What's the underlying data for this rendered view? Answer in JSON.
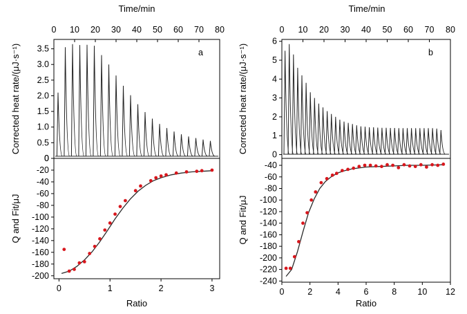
{
  "chart_data": [
    {
      "panel_label": "a",
      "type": "line",
      "time_axis_label": "Time/min",
      "time_ticks": [
        "0",
        "10",
        "20",
        "30",
        "40",
        "50",
        "60",
        "70",
        "80"
      ],
      "time_range": [
        0,
        80
      ],
      "thermogram": {
        "ylabel": "Corrected heat rate/(μJ·s⁻¹)",
        "ylim": [
          0,
          3.8
        ],
        "yticks": [
          "0",
          "0.5",
          "1.0",
          "1.5",
          "2.0",
          "2.5",
          "3.0",
          "3.5"
        ],
        "peak_times": [
          2,
          5.5,
          9,
          12.5,
          16,
          19.5,
          23,
          26.5,
          30,
          33.5,
          37,
          40.5,
          44,
          47.5,
          51,
          54.5,
          58,
          61.5,
          65,
          68.5,
          72,
          75.5
        ],
        "peak_heights": [
          2.1,
          3.55,
          3.65,
          3.62,
          3.63,
          3.6,
          3.3,
          3.0,
          2.65,
          2.32,
          2.02,
          1.73,
          1.48,
          1.27,
          1.1,
          0.97,
          0.86,
          0.77,
          0.7,
          0.65,
          0.6,
          0.56
        ],
        "baseline": 0.07
      },
      "binding": {
        "type": "scatter",
        "xlabel": "Ratio",
        "ylabel": "Q and Fit/μJ",
        "xlim": [
          -0.1,
          3.15
        ],
        "ylim": [
          -205,
          0
        ],
        "xticks": [
          "0",
          "1",
          "2",
          "3"
        ],
        "yticks": [
          "0",
          "-20",
          "-40",
          "-60",
          "-80",
          "-100",
          "-120",
          "-140",
          "-160",
          "-180",
          "-200"
        ],
        "points": [
          [
            0.1,
            -155
          ],
          [
            0.2,
            -192
          ],
          [
            0.3,
            -189
          ],
          [
            0.4,
            -178
          ],
          [
            0.5,
            -176
          ],
          [
            0.6,
            -162
          ],
          [
            0.7,
            -150
          ],
          [
            0.8,
            -137
          ],
          [
            0.9,
            -122
          ],
          [
            1.0,
            -110
          ],
          [
            1.1,
            -95
          ],
          [
            1.2,
            -82
          ],
          [
            1.3,
            -72
          ],
          [
            1.5,
            -55
          ],
          [
            1.6,
            -47
          ],
          [
            1.8,
            -38
          ],
          [
            1.9,
            -33
          ],
          [
            2.0,
            -30
          ],
          [
            2.1,
            -28
          ],
          [
            2.3,
            -25
          ],
          [
            2.5,
            -23
          ],
          [
            2.7,
            -22
          ],
          [
            2.8,
            -21
          ],
          [
            3.0,
            -20
          ]
        ],
        "fit": [
          [
            0.05,
            -196
          ],
          [
            0.2,
            -192
          ],
          [
            0.35,
            -184
          ],
          [
            0.5,
            -173
          ],
          [
            0.65,
            -159
          ],
          [
            0.8,
            -142
          ],
          [
            0.95,
            -123
          ],
          [
            1.1,
            -103
          ],
          [
            1.25,
            -85
          ],
          [
            1.4,
            -69
          ],
          [
            1.55,
            -56
          ],
          [
            1.7,
            -46
          ],
          [
            1.85,
            -38
          ],
          [
            2.0,
            -33
          ],
          [
            2.2,
            -28
          ],
          [
            2.4,
            -25
          ],
          [
            2.6,
            -23
          ],
          [
            2.8,
            -22
          ],
          [
            3.0,
            -21
          ]
        ]
      }
    },
    {
      "panel_label": "b",
      "type": "line",
      "time_axis_label": "Time/min",
      "time_ticks": [
        "0",
        "10",
        "20",
        "30",
        "40",
        "50",
        "60",
        "70",
        "80"
      ],
      "time_range": [
        0,
        80
      ],
      "thermogram": {
        "ylabel": "Corrected heat rate/(μJ·s⁻¹)",
        "ylim": [
          -0.2,
          6.1
        ],
        "yticks": [
          "0",
          "1",
          "2",
          "3",
          "4",
          "5",
          "6"
        ],
        "peak_times": [
          1.5,
          3.5,
          5.5,
          7.5,
          9.5,
          11.5,
          13.5,
          15.5,
          17.5,
          19.5,
          21.5,
          23.5,
          25.5,
          27.5,
          29.5,
          31.5,
          33.5,
          35.5,
          37.5,
          39.5,
          41.5,
          43.5,
          45.5,
          47.5,
          49.5,
          51.5,
          53.5,
          55.5,
          57.5,
          59.5,
          61.5,
          63.5,
          65.5,
          67.5,
          69.5,
          71.5,
          73.5,
          75.5
        ],
        "peak_heights": [
          5.5,
          5.85,
          5.3,
          4.6,
          4.2,
          3.8,
          3.3,
          3.0,
          2.7,
          2.5,
          2.3,
          2.15,
          2.0,
          1.85,
          1.75,
          1.68,
          1.62,
          1.55,
          1.5,
          1.48,
          1.45,
          1.45,
          1.43,
          1.42,
          1.42,
          1.41,
          1.41,
          1.4,
          1.4,
          1.4,
          1.4,
          1.4,
          1.4,
          1.4,
          1.4,
          1.4,
          1.38,
          1.3
        ],
        "baseline": 0.02
      },
      "binding": {
        "type": "scatter",
        "xlabel": "Ratio",
        "ylabel": "Q and Fit/μJ",
        "xlim": [
          0,
          12
        ],
        "ylim": [
          -242,
          -28
        ],
        "xticks": [
          "0",
          "2",
          "4",
          "6",
          "8",
          "10",
          "12"
        ],
        "yticks": [
          "-40",
          "-60",
          "-80",
          "-100",
          "-120",
          "-140",
          "-160",
          "-180",
          "-200",
          "-220",
          "-240"
        ],
        "points": [
          [
            0.3,
            -218
          ],
          [
            0.6,
            -218
          ],
          [
            0.9,
            -198
          ],
          [
            1.2,
            -172
          ],
          [
            1.5,
            -140
          ],
          [
            1.8,
            -122
          ],
          [
            2.1,
            -100
          ],
          [
            2.4,
            -86
          ],
          [
            2.8,
            -70
          ],
          [
            3.2,
            -63
          ],
          [
            3.6,
            -57
          ],
          [
            3.9,
            -54
          ],
          [
            4.3,
            -49
          ],
          [
            4.7,
            -47
          ],
          [
            5.1,
            -45
          ],
          [
            5.5,
            -42
          ],
          [
            5.9,
            -40
          ],
          [
            6.3,
            -40
          ],
          [
            6.7,
            -41
          ],
          [
            7.1,
            -42
          ],
          [
            7.5,
            -39
          ],
          [
            7.9,
            -40
          ],
          [
            8.3,
            -44
          ],
          [
            8.7,
            -39
          ],
          [
            9.1,
            -41
          ],
          [
            9.5,
            -42
          ],
          [
            9.9,
            -39
          ],
          [
            10.3,
            -43
          ],
          [
            10.7,
            -39
          ],
          [
            11.1,
            -40
          ],
          [
            11.5,
            -38
          ]
        ],
        "fit": [
          [
            0.3,
            -232
          ],
          [
            0.7,
            -220
          ],
          [
            1.1,
            -190
          ],
          [
            1.5,
            -155
          ],
          [
            1.9,
            -122
          ],
          [
            2.3,
            -98
          ],
          [
            2.7,
            -80
          ],
          [
            3.1,
            -68
          ],
          [
            3.5,
            -60
          ],
          [
            4.0,
            -53
          ],
          [
            4.5,
            -49
          ],
          [
            5.0,
            -46
          ],
          [
            6.0,
            -43
          ],
          [
            7.0,
            -42
          ],
          [
            8.0,
            -41
          ],
          [
            9.0,
            -40
          ],
          [
            10.0,
            -40
          ],
          [
            11.5,
            -39
          ]
        ]
      }
    }
  ]
}
